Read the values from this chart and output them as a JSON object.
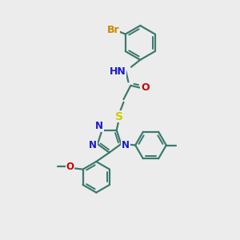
{
  "background_color": "#ececec",
  "bond_color": "#3d7a6e",
  "N_color": "#1a1acd",
  "O_color": "#cc0000",
  "S_color": "#cccc00",
  "Br_color": "#cc8800",
  "lw": 1.6,
  "fs": 8.5,
  "xlim": [
    0,
    10
  ],
  "ylim": [
    0,
    10
  ]
}
